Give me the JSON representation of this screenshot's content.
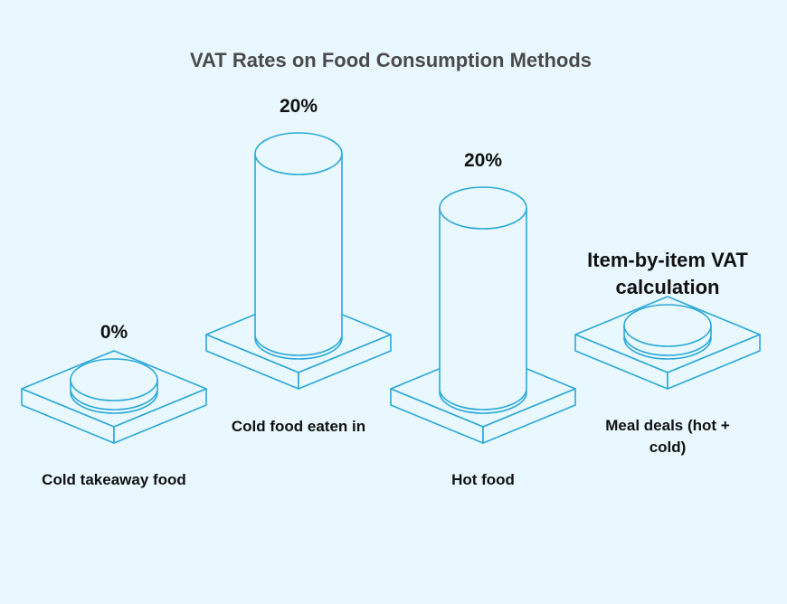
{
  "chart_data": {
    "type": "bar",
    "title": "VAT Rates on Food Consumption Methods",
    "categories": [
      "Cold takeaway food",
      "Cold food eaten in",
      "Hot food",
      "Meal deals (hot + cold)"
    ],
    "values": [
      0,
      20,
      20,
      null
    ],
    "value_labels": [
      "0%",
      "20%",
      "20%",
      "Item-by-item VAT calculation"
    ],
    "unit": "%",
    "xlabel": "",
    "ylabel": "",
    "grid": false,
    "legend": "none"
  },
  "colors": {
    "background": "#e8f8fe",
    "stroke": "#2aa8d8",
    "fill": "#e8f8fe",
    "title": "#4a4a4a",
    "text": "#111111"
  }
}
